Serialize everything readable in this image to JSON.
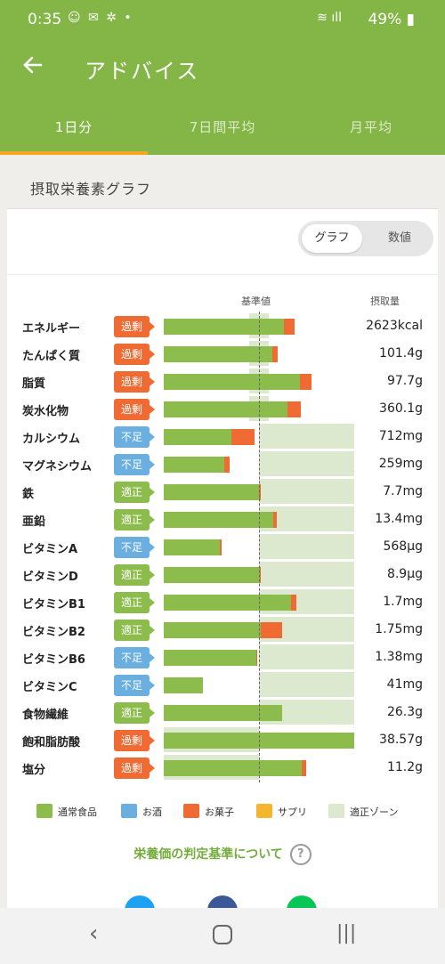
{
  "status": {
    "time": "0:35",
    "icons": "☺ ✉ ✲ •",
    "wifi": "≋ ıll",
    "battery": "49% ▮"
  },
  "header": {
    "back_icon": "arrow-left-icon",
    "title": "アドバイス"
  },
  "tabs": [
    {
      "label": "1日分",
      "active": true
    },
    {
      "label": "7日間平均",
      "active": false
    },
    {
      "label": "月平均",
      "active": false
    }
  ],
  "card": {
    "title": "摂取栄養素グラフ"
  },
  "toggle": {
    "graph_label": "グラフ",
    "number_label": "数値",
    "selected": "graph"
  },
  "columns": {
    "baseline": "基準値",
    "intake": "摂取量"
  },
  "colors": {
    "normal_food": "#8cbc4c",
    "alcohol": "#6aafe0",
    "snack": "#f06a33",
    "supplement": "#f5b52e",
    "proper_zone": "#dde9cf",
    "over": "#f06a33",
    "under": "#6aafe0",
    "proper": "#8cbc4c",
    "accent": "#84b547"
  },
  "nutrients": [
    {
      "name": "エネルギー",
      "status": "過剰",
      "status_type": "over",
      "value": "2623kcal",
      "food_pct": 126,
      "snack_pct": 11,
      "zone": [
        90,
        110
      ]
    },
    {
      "name": "たんぱく質",
      "status": "過剰",
      "status_type": "over",
      "value": "101.4g",
      "food_pct": 114,
      "snack_pct": 6,
      "zone": [
        90,
        110
      ]
    },
    {
      "name": "脂質",
      "status": "過剰",
      "status_type": "over",
      "value": "97.7g",
      "food_pct": 143,
      "snack_pct": 12,
      "zone": [
        90,
        110
      ]
    },
    {
      "name": "炭水化物",
      "status": "過剰",
      "status_type": "over",
      "value": "360.1g",
      "food_pct": 130,
      "snack_pct": 14,
      "zone": [
        90,
        110
      ]
    },
    {
      "name": "カルシウム",
      "status": "不足",
      "status_type": "under",
      "value": "712mg",
      "food_pct": 71,
      "snack_pct": 24,
      "zone": [
        100,
        200
      ]
    },
    {
      "name": "マグネシウム",
      "status": "不足",
      "status_type": "under",
      "value": "259mg",
      "food_pct": 64,
      "snack_pct": 5,
      "zone": [
        100,
        200
      ]
    },
    {
      "name": "鉄",
      "status": "適正",
      "status_type": "proper",
      "value": "7.7mg",
      "food_pct": 100,
      "snack_pct": 2,
      "zone": [
        100,
        200
      ]
    },
    {
      "name": "亜鉛",
      "status": "適正",
      "status_type": "proper",
      "value": "13.4mg",
      "food_pct": 115,
      "snack_pct": 4,
      "zone": [
        100,
        200
      ]
    },
    {
      "name": "ビタミンA",
      "status": "不足",
      "status_type": "under",
      "value": "568μg",
      "food_pct": 59,
      "snack_pct": 2,
      "zone": [
        100,
        200
      ]
    },
    {
      "name": "ビタミンD",
      "status": "適正",
      "status_type": "proper",
      "value": "8.9μg",
      "food_pct": 101,
      "snack_pct": 1,
      "zone": [
        100,
        200
      ]
    },
    {
      "name": "ビタミンB1",
      "status": "適正",
      "status_type": "proper",
      "value": "1.7mg",
      "food_pct": 134,
      "snack_pct": 5,
      "zone": [
        100,
        200
      ]
    },
    {
      "name": "ビタミンB2",
      "status": "適正",
      "status_type": "proper",
      "value": "1.75mg",
      "food_pct": 102,
      "snack_pct": 22,
      "zone": [
        100,
        200
      ]
    },
    {
      "name": "ビタミンB6",
      "status": "不足",
      "status_type": "under",
      "value": "1.38mg",
      "food_pct": 97,
      "snack_pct": 1,
      "zone": [
        100,
        200
      ]
    },
    {
      "name": "ビタミンC",
      "status": "不足",
      "status_type": "under",
      "value": "41mg",
      "food_pct": 41,
      "snack_pct": 0,
      "zone": [
        100,
        200
      ]
    },
    {
      "name": "食物繊維",
      "status": "適正",
      "status_type": "proper",
      "value": "26.3g",
      "food_pct": 124,
      "snack_pct": 0,
      "zone": [
        100,
        200
      ]
    },
    {
      "name": "飽和脂肪酸",
      "status": "過剰",
      "status_type": "over",
      "value": "38.57g",
      "food_pct": 200,
      "snack_pct": 0,
      "zone": [
        0,
        100
      ]
    },
    {
      "name": "塩分",
      "status": "過剰",
      "status_type": "over",
      "value": "11.2g",
      "food_pct": 145,
      "snack_pct": 5,
      "zone": [
        0,
        100
      ]
    }
  ],
  "legend": [
    {
      "label": "通常食品",
      "color": "#8cbc4c"
    },
    {
      "label": "お酒",
      "color": "#6aafe0"
    },
    {
      "label": "お菓子",
      "color": "#f06a33"
    },
    {
      "label": "サプリ",
      "color": "#f5b52e"
    },
    {
      "label": "適正ゾーン",
      "color": "#dde9cf"
    }
  ],
  "criteria_link": "栄養価の判定基準について",
  "share": [
    {
      "name": "twitter-icon",
      "color": "#1da1f2"
    },
    {
      "name": "facebook-icon",
      "color": "#3b5998"
    },
    {
      "name": "line-icon",
      "color": "#06c755"
    }
  ]
}
